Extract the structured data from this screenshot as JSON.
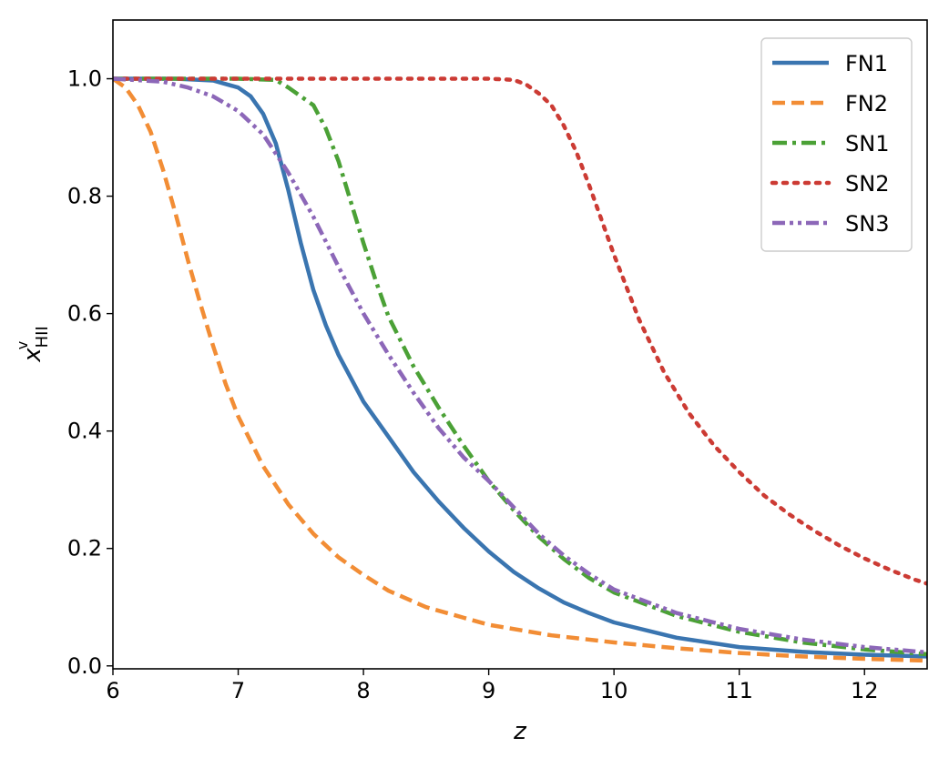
{
  "chart_data": {
    "type": "line",
    "title": "",
    "xlabel": "z",
    "ylabel": {
      "base": "x",
      "sub": "HII",
      "sup": "v"
    },
    "xlim": [
      6,
      12.5
    ],
    "ylim": [
      -0.005,
      1.1
    ],
    "xticks": [
      6,
      7,
      8,
      9,
      10,
      11,
      12
    ],
    "yticks": [
      0.0,
      0.2,
      0.4,
      0.6,
      0.8,
      1.0
    ],
    "xtick_labels": [
      "6",
      "7",
      "8",
      "9",
      "10",
      "11",
      "12"
    ],
    "ytick_labels": [
      "0.0",
      "0.2",
      "0.4",
      "0.6",
      "0.8",
      "1.0"
    ],
    "grid": false,
    "legend_position": "top-right",
    "series": [
      {
        "name": "FN1",
        "color": "#3a75b0",
        "dash": "solid",
        "points": [
          [
            6.0,
            1.0
          ],
          [
            6.5,
            1.0
          ],
          [
            6.8,
            0.997
          ],
          [
            7.0,
            0.985
          ],
          [
            7.1,
            0.97
          ],
          [
            7.2,
            0.94
          ],
          [
            7.3,
            0.89
          ],
          [
            7.4,
            0.81
          ],
          [
            7.5,
            0.72
          ],
          [
            7.6,
            0.64
          ],
          [
            7.7,
            0.58
          ],
          [
            7.8,
            0.53
          ],
          [
            8.0,
            0.45
          ],
          [
            8.2,
            0.39
          ],
          [
            8.4,
            0.33
          ],
          [
            8.6,
            0.28
          ],
          [
            8.8,
            0.235
          ],
          [
            9.0,
            0.195
          ],
          [
            9.2,
            0.16
          ],
          [
            9.4,
            0.132
          ],
          [
            9.6,
            0.108
          ],
          [
            9.8,
            0.09
          ],
          [
            10.0,
            0.074
          ],
          [
            10.5,
            0.048
          ],
          [
            11.0,
            0.032
          ],
          [
            11.5,
            0.024
          ],
          [
            12.0,
            0.019
          ],
          [
            12.5,
            0.016
          ]
        ]
      },
      {
        "name": "FN2",
        "color": "#f28d35",
        "dash": "dashed",
        "points": [
          [
            6.0,
            1.0
          ],
          [
            6.1,
            0.985
          ],
          [
            6.2,
            0.955
          ],
          [
            6.3,
            0.91
          ],
          [
            6.4,
            0.845
          ],
          [
            6.5,
            0.77
          ],
          [
            6.6,
            0.69
          ],
          [
            6.7,
            0.615
          ],
          [
            6.8,
            0.545
          ],
          [
            6.9,
            0.48
          ],
          [
            7.0,
            0.425
          ],
          [
            7.2,
            0.34
          ],
          [
            7.4,
            0.275
          ],
          [
            7.6,
            0.225
          ],
          [
            7.8,
            0.185
          ],
          [
            8.0,
            0.155
          ],
          [
            8.2,
            0.128
          ],
          [
            8.5,
            0.1
          ],
          [
            9.0,
            0.07
          ],
          [
            9.5,
            0.052
          ],
          [
            10.0,
            0.04
          ],
          [
            10.5,
            0.03
          ],
          [
            11.0,
            0.022
          ],
          [
            11.5,
            0.016
          ],
          [
            12.0,
            0.012
          ],
          [
            12.5,
            0.009
          ]
        ]
      },
      {
        "name": "SN1",
        "color": "#4ba136",
        "dash": "dashdot",
        "points": [
          [
            6.0,
            1.0
          ],
          [
            7.0,
            1.0
          ],
          [
            7.3,
            0.998
          ],
          [
            7.4,
            0.985
          ],
          [
            7.5,
            0.97
          ],
          [
            7.6,
            0.955
          ],
          [
            7.7,
            0.915
          ],
          [
            7.8,
            0.86
          ],
          [
            7.9,
            0.79
          ],
          [
            8.0,
            0.72
          ],
          [
            8.1,
            0.655
          ],
          [
            8.2,
            0.595
          ],
          [
            8.4,
            0.51
          ],
          [
            8.6,
            0.44
          ],
          [
            8.8,
            0.375
          ],
          [
            9.0,
            0.315
          ],
          [
            9.2,
            0.265
          ],
          [
            9.4,
            0.22
          ],
          [
            9.6,
            0.182
          ],
          [
            9.8,
            0.15
          ],
          [
            10.0,
            0.125
          ],
          [
            10.5,
            0.085
          ],
          [
            11.0,
            0.058
          ],
          [
            11.5,
            0.04
          ],
          [
            12.0,
            0.028
          ],
          [
            12.5,
            0.02
          ]
        ]
      },
      {
        "name": "SN2",
        "color": "#cc3b34",
        "dash": "dotted",
        "points": [
          [
            6.0,
            1.0
          ],
          [
            9.0,
            1.0
          ],
          [
            9.2,
            0.998
          ],
          [
            9.3,
            0.99
          ],
          [
            9.4,
            0.975
          ],
          [
            9.5,
            0.955
          ],
          [
            9.6,
            0.92
          ],
          [
            9.7,
            0.875
          ],
          [
            9.8,
            0.82
          ],
          [
            9.9,
            0.76
          ],
          [
            10.0,
            0.7
          ],
          [
            10.2,
            0.59
          ],
          [
            10.4,
            0.5
          ],
          [
            10.6,
            0.43
          ],
          [
            10.8,
            0.375
          ],
          [
            11.0,
            0.33
          ],
          [
            11.2,
            0.29
          ],
          [
            11.4,
            0.258
          ],
          [
            11.6,
            0.23
          ],
          [
            11.8,
            0.205
          ],
          [
            12.0,
            0.183
          ],
          [
            12.2,
            0.164
          ],
          [
            12.4,
            0.147
          ],
          [
            12.5,
            0.14
          ]
        ]
      },
      {
        "name": "SN3",
        "color": "#8c67b8",
        "dash": "dashdotdot",
        "points": [
          [
            6.0,
            1.0
          ],
          [
            6.4,
            0.995
          ],
          [
            6.6,
            0.985
          ],
          [
            6.8,
            0.97
          ],
          [
            7.0,
            0.945
          ],
          [
            7.2,
            0.905
          ],
          [
            7.4,
            0.84
          ],
          [
            7.6,
            0.765
          ],
          [
            7.8,
            0.68
          ],
          [
            8.0,
            0.6
          ],
          [
            8.2,
            0.53
          ],
          [
            8.4,
            0.465
          ],
          [
            8.6,
            0.405
          ],
          [
            8.8,
            0.355
          ],
          [
            9.0,
            0.315
          ],
          [
            9.2,
            0.27
          ],
          [
            9.4,
            0.225
          ],
          [
            9.6,
            0.188
          ],
          [
            9.8,
            0.157
          ],
          [
            10.0,
            0.13
          ],
          [
            10.5,
            0.09
          ],
          [
            11.0,
            0.063
          ],
          [
            11.5,
            0.045
          ],
          [
            12.0,
            0.032
          ],
          [
            12.5,
            0.023
          ]
        ]
      }
    ]
  }
}
